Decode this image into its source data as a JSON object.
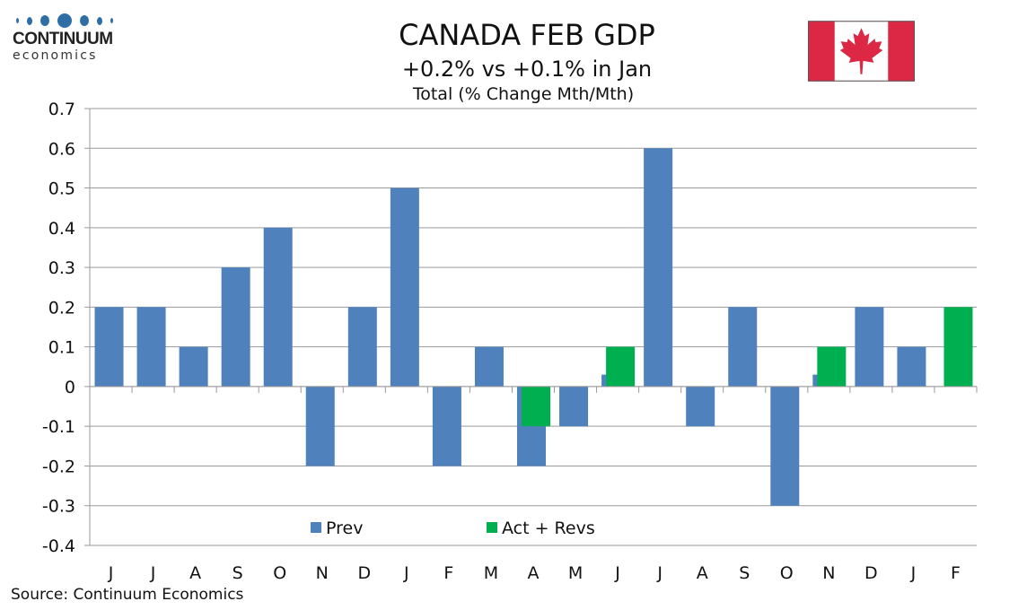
{
  "logo": {
    "name": "CONTINUUM",
    "sub": "economics"
  },
  "header": {
    "title": "CANADA FEB GDP",
    "subtitle": "+0.2% vs +0.1% in Jan"
  },
  "flag": {
    "name": "Canada",
    "red": "#dc2845",
    "white": "#ffffff"
  },
  "source": "Source: Continuum Economics",
  "chart_data": {
    "type": "bar",
    "title": "Total (% Change Mth/Mth)",
    "xlabel": "",
    "ylabel": "",
    "ylim": [
      -0.4,
      0.7
    ],
    "yticks": [
      0.7,
      0.6,
      0.5,
      0.4,
      0.3,
      0.2,
      0.1,
      0,
      -0.1,
      -0.2,
      -0.3,
      -0.4
    ],
    "ytick_labels": [
      "0.7",
      "0.6",
      "0.5",
      "0.4",
      "0.3",
      "0.2",
      "0.1",
      "0",
      "-0.1",
      "-0.2",
      "-0.3",
      "-0.4"
    ],
    "grid": true,
    "legend_position": "bottom-center",
    "categories": [
      "J",
      "J",
      "A",
      "S",
      "O",
      "N",
      "D",
      "J",
      "F",
      "M",
      "A",
      "M",
      "J",
      "J",
      "A",
      "S",
      "O",
      "N",
      "D",
      "J",
      "F"
    ],
    "series": [
      {
        "name": "Prev",
        "color": "#4f81bd",
        "values": [
          0.2,
          0.2,
          0.1,
          0.3,
          0.4,
          -0.2,
          0.2,
          0.5,
          -0.2,
          0.1,
          -0.2,
          -0.1,
          0.03,
          0.6,
          -0.1,
          0.2,
          -0.3,
          0.03,
          0.2,
          0.1,
          null
        ]
      },
      {
        "name": "Act + Revs",
        "color": "#00b050",
        "values": [
          null,
          null,
          null,
          null,
          null,
          null,
          null,
          null,
          null,
          null,
          -0.1,
          null,
          0.1,
          null,
          null,
          null,
          null,
          0.1,
          null,
          null,
          0.2
        ]
      }
    ]
  }
}
